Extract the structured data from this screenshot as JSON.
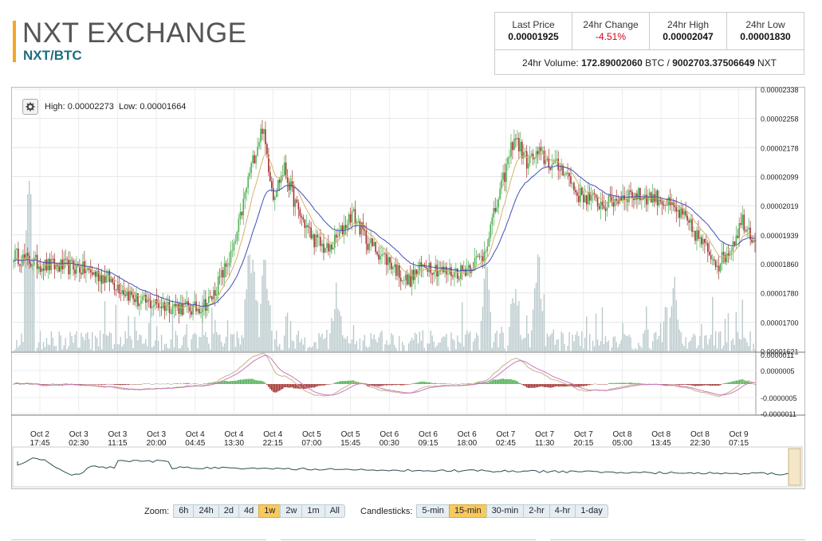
{
  "header": {
    "title": "NXT EXCHANGE",
    "pair": "NXT/BTC"
  },
  "stats": {
    "last_price_label": "Last Price",
    "last_price": "0.00001925",
    "change_label": "24hr Change",
    "change": "-4.51%",
    "high_label": "24hr High",
    "high": "0.00002047",
    "low_label": "24hr Low",
    "low": "0.00001830",
    "volume_label": "24hr Volume:",
    "volume_btc": "172.89002060",
    "volume_btc_unit": "BTC /",
    "volume_nxt": "9002703.37506649",
    "volume_nxt_unit": "NXT"
  },
  "chart_info": {
    "high_label": "High:",
    "high": "0.00002273",
    "low_label": "Low:",
    "low": "0.00001664"
  },
  "controls": {
    "zoom_label": "Zoom:",
    "zoom_options": [
      "6h",
      "24h",
      "2d",
      "4d",
      "1w",
      "2w",
      "1m",
      "All"
    ],
    "zoom_active": "1w",
    "candle_label": "Candlesticks:",
    "candle_options": [
      "5-min",
      "15-min",
      "30-min",
      "2-hr",
      "4-hr",
      "1-day"
    ],
    "candle_active": "15-min"
  },
  "colors": {
    "up": "#4caf50",
    "down": "#a0302c",
    "ema_fast": "#d4b36c",
    "ema_slow": "#3f51b5",
    "volume": "#b9c9cc",
    "macd_line": "#c8b08a",
    "macd_signal": "#c878c0",
    "navigator": "#2b4f52"
  },
  "chart_data": {
    "type": "candlestick",
    "price_axis": [
      "0.00002338",
      "0.00002258",
      "0.00002178",
      "0.00002099",
      "0.00002019",
      "0.00001939",
      "0.00001860",
      "0.00001780",
      "0.00001700",
      "0.00001621"
    ],
    "price_ticks": [
      2.338e-05,
      2.258e-05,
      2.178e-05,
      2.099e-05,
      2.019e-05,
      1.939e-05,
      1.86e-05,
      1.78e-05,
      1.7e-05,
      1.621e-05
    ],
    "ylim": [
      1.62e-05,
      2.34e-05
    ],
    "macd_axis": [
      "0.0000011",
      "0.0000005",
      "-0.0000005",
      "-0.0000011"
    ],
    "macd_ticks": [
      1.1e-06,
      5e-07,
      -5e-07,
      -1.1e-06
    ],
    "macd_lim": [
      -1.1e-06,
      1.1e-06
    ],
    "x_labels": [
      [
        "Oct 2",
        "17:45"
      ],
      [
        "Oct 3",
        "02:30"
      ],
      [
        "Oct 3",
        "11:15"
      ],
      [
        "Oct 3",
        "20:00"
      ],
      [
        "Oct 4",
        "04:45"
      ],
      [
        "Oct 4",
        "13:30"
      ],
      [
        "Oct 4",
        "22:15"
      ],
      [
        "Oct 5",
        "07:00"
      ],
      [
        "Oct 5",
        "15:45"
      ],
      [
        "Oct 6",
        "00:30"
      ],
      [
        "Oct 6",
        "09:15"
      ],
      [
        "Oct 6",
        "18:00"
      ],
      [
        "Oct 7",
        "02:45"
      ],
      [
        "Oct 7",
        "11:30"
      ],
      [
        "Oct 7",
        "20:15"
      ],
      [
        "Oct 8",
        "05:00"
      ],
      [
        "Oct 8",
        "13:45"
      ],
      [
        "Oct 8",
        "22:30"
      ],
      [
        "Oct 9",
        "07:15"
      ]
    ],
    "close_keypoints": [
      [
        0,
        1.885e-05
      ],
      [
        8,
        1.87e-05
      ],
      [
        20,
        1.855e-05
      ],
      [
        40,
        1.85e-05
      ],
      [
        60,
        1.82e-05
      ],
      [
        80,
        1.755e-05
      ],
      [
        100,
        1.745e-05
      ],
      [
        115,
        1.735e-05
      ],
      [
        125,
        1.76e-05
      ],
      [
        140,
        1.9e-05
      ],
      [
        150,
        2.11e-05
      ],
      [
        158,
        2.235e-05
      ],
      [
        165,
        2.05e-05
      ],
      [
        172,
        2.12e-05
      ],
      [
        180,
        2.01e-05
      ],
      [
        190,
        1.93e-05
      ],
      [
        200,
        1.895e-05
      ],
      [
        207,
        1.94e-05
      ],
      [
        215,
        2e-05
      ],
      [
        225,
        1.92e-05
      ],
      [
        240,
        1.86e-05
      ],
      [
        250,
        1.81e-05
      ],
      [
        262,
        1.86e-05
      ],
      [
        275,
        1.835e-05
      ],
      [
        285,
        1.84e-05
      ],
      [
        298,
        1.88e-05
      ],
      [
        310,
        2.07e-05
      ],
      [
        318,
        2.21e-05
      ],
      [
        326,
        2.14e-05
      ],
      [
        334,
        2.16e-05
      ],
      [
        342,
        2.13e-05
      ],
      [
        350,
        2.12e-05
      ],
      [
        358,
        2.05e-05
      ],
      [
        366,
        2.04e-05
      ],
      [
        375,
        2.02e-05
      ],
      [
        390,
        2.05e-05
      ],
      [
        410,
        2.04e-05
      ],
      [
        425,
        1.99e-05
      ],
      [
        440,
        1.9e-05
      ],
      [
        448,
        1.86e-05
      ],
      [
        455,
        1.9e-05
      ],
      [
        463,
        1.98e-05
      ],
      [
        471,
        1.925e-05
      ]
    ],
    "volume_spikes": [
      [
        10,
        0.85
      ],
      [
        150,
        0.55
      ],
      [
        152,
        0.45
      ],
      [
        160,
        0.45
      ],
      [
        205,
        0.3
      ],
      [
        300,
        0.4
      ],
      [
        318,
        0.3
      ],
      [
        333,
        0.45
      ],
      [
        420,
        0.3
      ]
    ]
  }
}
